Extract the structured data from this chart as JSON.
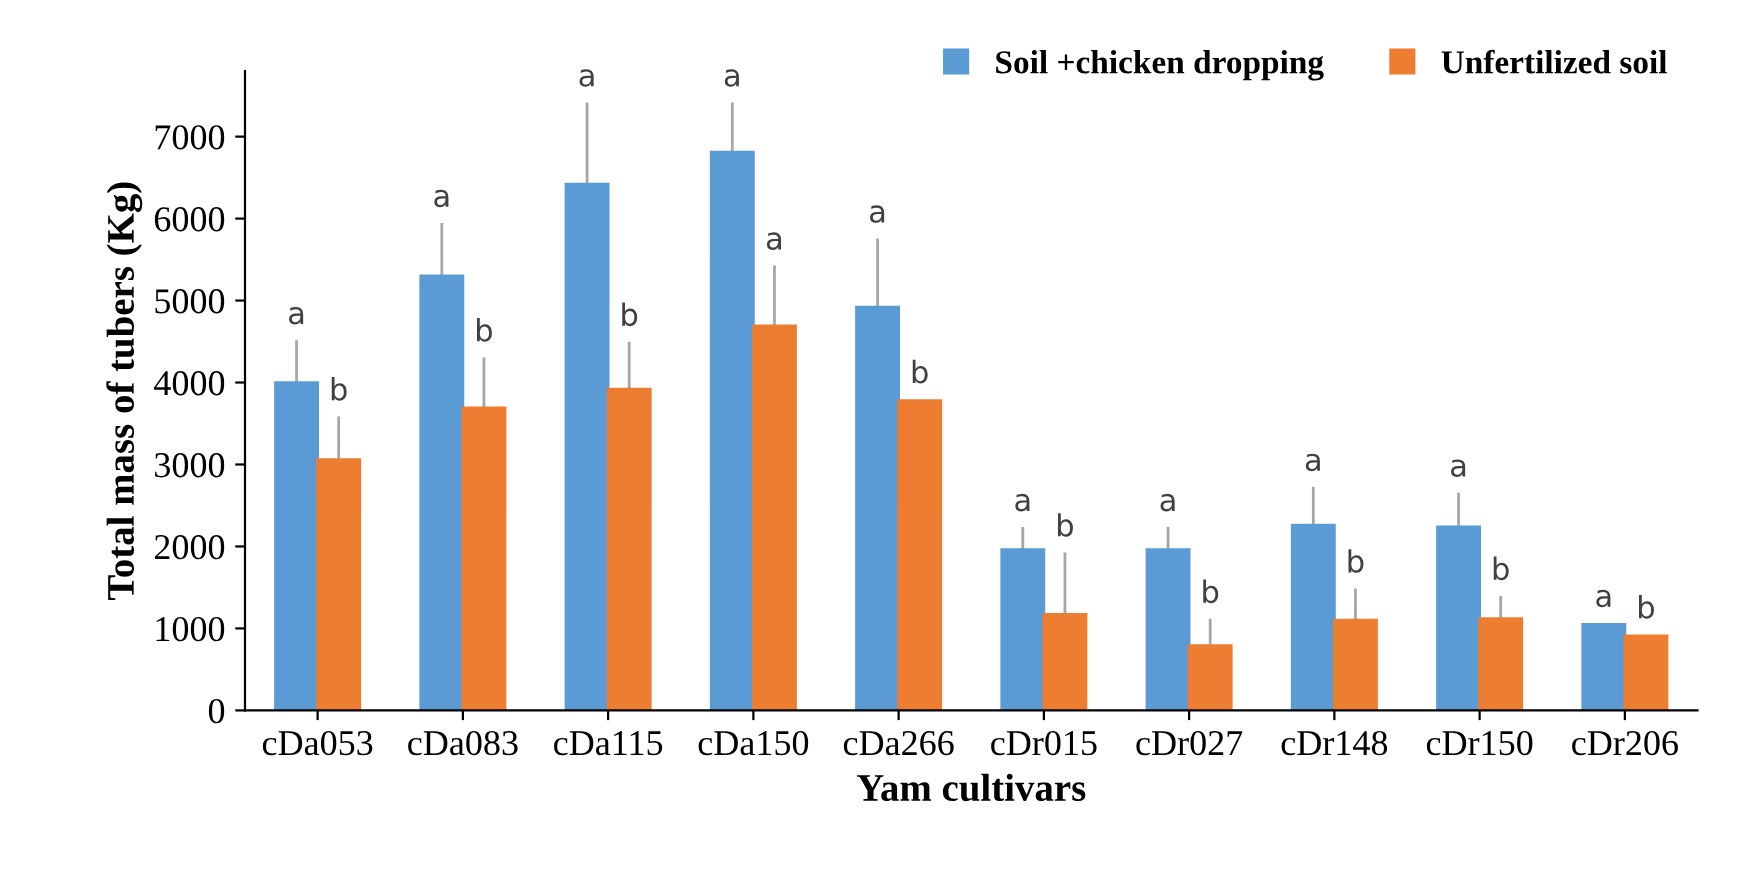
{
  "chart_data": {
    "type": "bar",
    "xlabel": "Yam cultivars",
    "ylabel": "Total mass of tubers (Kg)",
    "categories": [
      "cDa053",
      "cDa083",
      "cDa115",
      "cDa150",
      "cDa266",
      "cDr015",
      "cDr027",
      "cDr148",
      "cDr150",
      "cDr206"
    ],
    "series": [
      {
        "name": "Soil +chicken dropping",
        "color": "#5b9bd5",
        "values": [
          4000,
          5300,
          6420,
          6810,
          4920,
          1960,
          1960,
          2260,
          2240,
          1050
        ],
        "errors": [
          [
            4000,
            4500
          ],
          [
            5300,
            5930
          ],
          [
            6420,
            7400
          ],
          [
            6810,
            7400
          ],
          [
            4920,
            5740
          ],
          [
            1960,
            2220
          ],
          [
            1960,
            2220
          ],
          [
            2260,
            2710
          ],
          [
            2240,
            2640
          ],
          null
        ]
      },
      {
        "name": "Unfertilized soil",
        "color": "#ed7d31",
        "values": [
          3060,
          3690,
          3920,
          4690,
          3780,
          1170,
          790,
          1100,
          1120,
          910
        ],
        "errors": [
          [
            3060,
            3570
          ],
          [
            3690,
            4290
          ],
          [
            3920,
            4480
          ],
          [
            4690,
            5410
          ],
          null,
          [
            1170,
            1910
          ],
          [
            790,
            1100
          ],
          [
            1100,
            1470
          ],
          [
            1120,
            1380
          ],
          null
        ]
      }
    ],
    "annotations": [
      "a",
      "b",
      "a",
      "b",
      "a",
      "b",
      "a",
      "a",
      "a",
      "b",
      "a",
      "b",
      "a",
      "b",
      "a",
      "b",
      "a",
      "b",
      "a",
      "b"
    ],
    "ylim": [
      0,
      7800
    ],
    "yticks": [
      0,
      1000,
      2000,
      3000,
      4000,
      5000,
      6000,
      7000
    ],
    "legend": "top right",
    "grid": false
  }
}
